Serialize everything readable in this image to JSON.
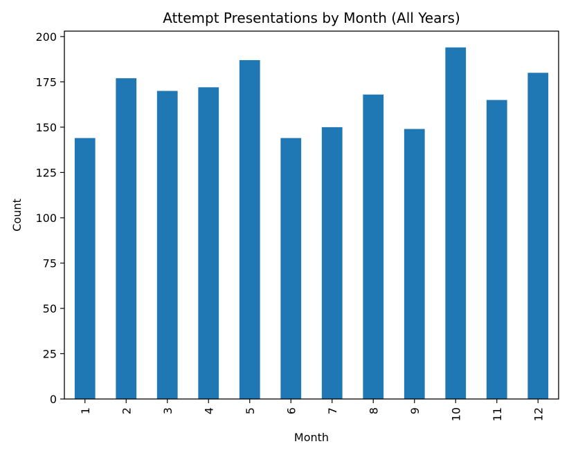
{
  "chart_data": {
    "type": "bar",
    "title": "Attempt Presentations by Month (All Years)",
    "xlabel": "Month",
    "ylabel": "Count",
    "categories": [
      "1",
      "2",
      "3",
      "4",
      "5",
      "6",
      "7",
      "8",
      "9",
      "10",
      "11",
      "12"
    ],
    "values": [
      144,
      177,
      170,
      172,
      187,
      144,
      150,
      168,
      149,
      194,
      165,
      180
    ],
    "ylim": [
      0,
      203
    ],
    "yticks": [
      0,
      25,
      50,
      75,
      100,
      125,
      150,
      175,
      200
    ],
    "grid": false,
    "legend": "none",
    "bar_color": "#1f77b4",
    "x_tick_rotation": "vertical"
  }
}
